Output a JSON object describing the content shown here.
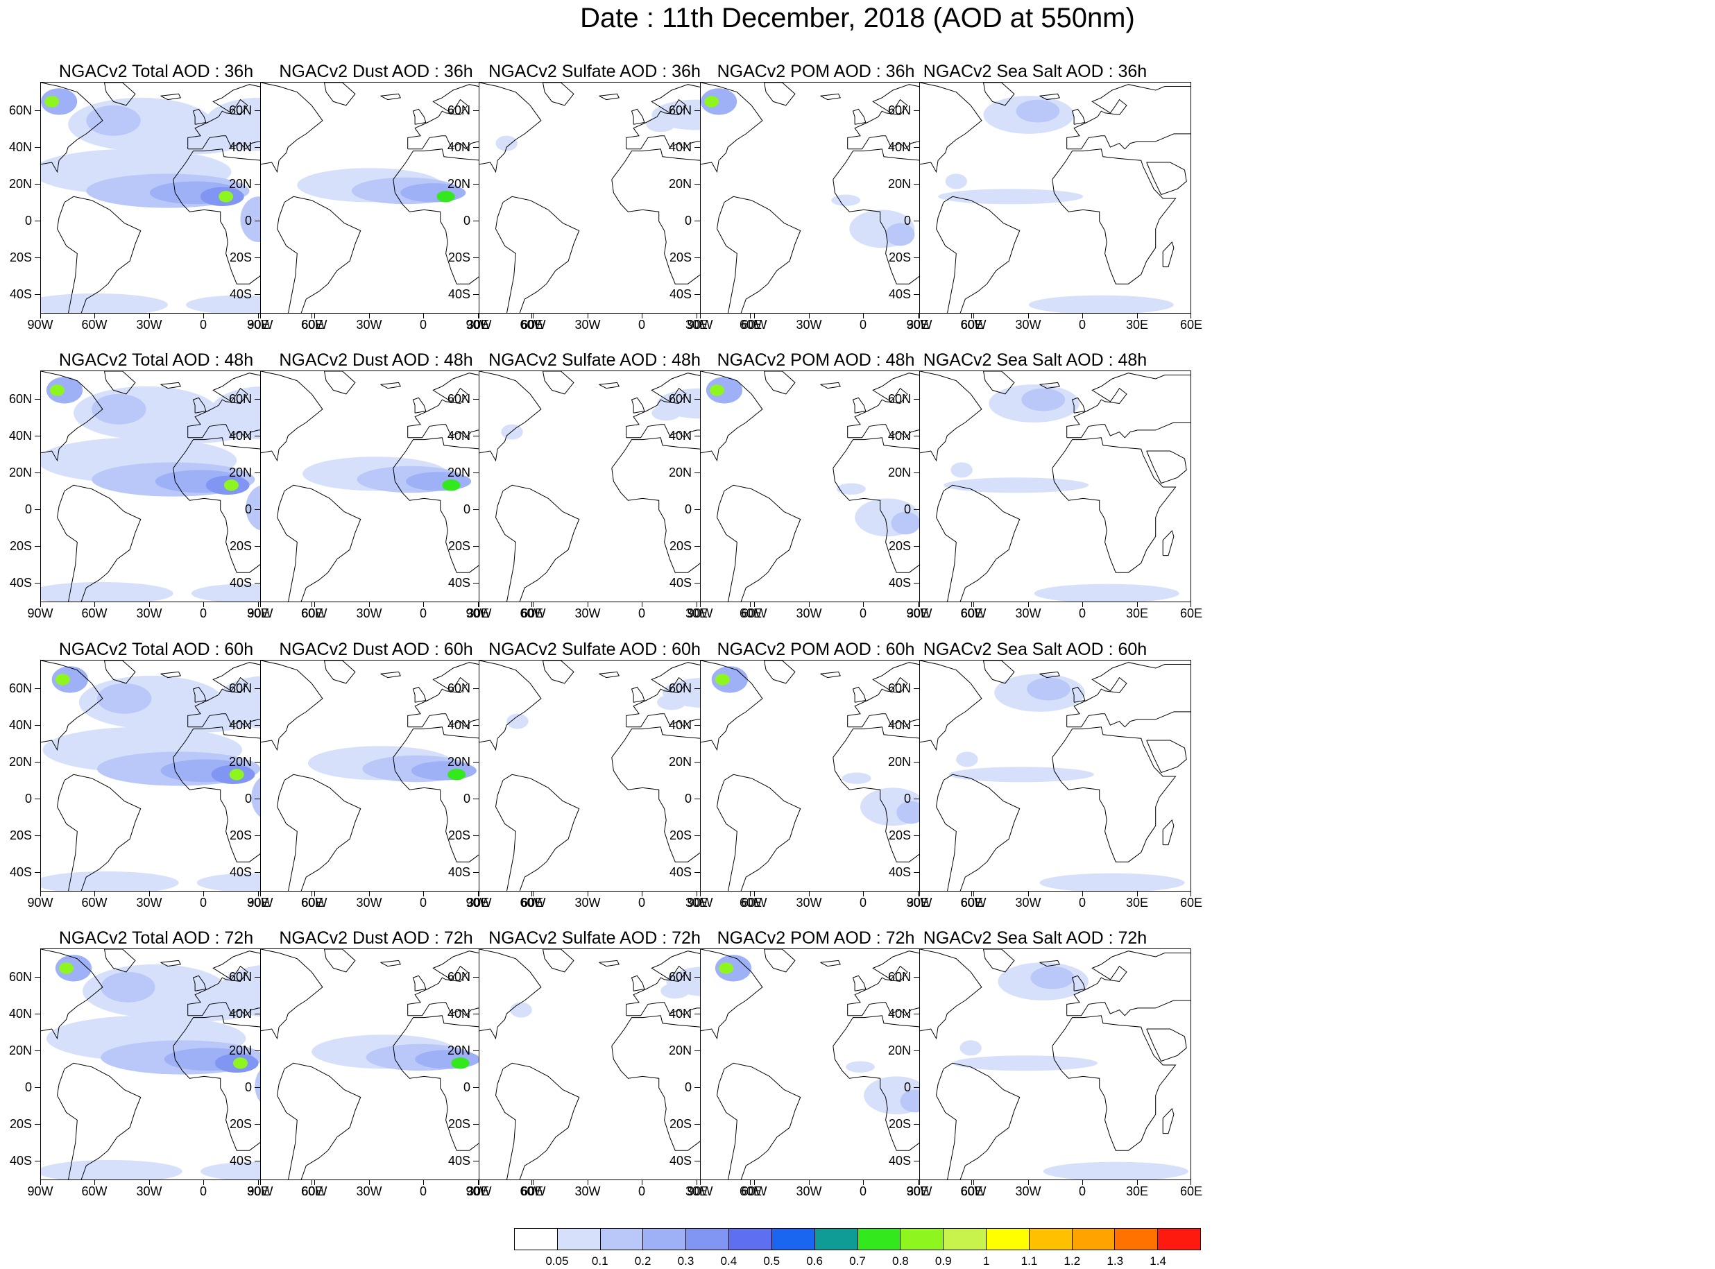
{
  "title": "Date : 11th December, 2018 (AOD at 550nm)",
  "latitude_ticks": [
    "60N",
    "40N",
    "20N",
    "0",
    "20S",
    "40S"
  ],
  "longitude_ticks": [
    "90W",
    "60W",
    "30W",
    "0",
    "30E",
    "60E"
  ],
  "panels": [
    [
      "NGACv2 Total AOD : 36h",
      "NGACv2 Dust AOD : 36h",
      "NGACv2 Sulfate AOD : 36h",
      "NGACv2 POM AOD : 36h",
      "NGACv2 Sea Salt AOD : 36h"
    ],
    [
      "NGACv2 Total AOD : 48h",
      "NGACv2 Dust AOD : 48h",
      "NGACv2 Sulfate AOD : 48h",
      "NGACv2 POM AOD : 48h",
      "NGACv2 Sea Salt AOD : 48h"
    ],
    [
      "NGACv2 Total AOD : 60h",
      "NGACv2 Dust AOD : 60h",
      "NGACv2 Sulfate AOD : 60h",
      "NGACv2 POM AOD : 60h",
      "NGACv2 Sea Salt AOD : 60h"
    ],
    [
      "NGACv2 Total AOD : 72h",
      "NGACv2 Dust AOD : 72h",
      "NGACv2 Sulfate AOD : 72h",
      "NGACv2 POM AOD : 72h",
      "NGACv2 Sea Salt  AOD : 72h"
    ]
  ],
  "colorbar": {
    "labels": [
      "0.05",
      "0.1",
      "0.2",
      "0.3",
      "0.4",
      "0.5",
      "0.6",
      "0.7",
      "0.8",
      "0.9",
      "1",
      "1.1",
      "1.2",
      "1.3",
      "1.4"
    ],
    "colors": [
      "#ffffff",
      "#d6e0fb",
      "#b9c8f8",
      "#9eb1f6",
      "#8195f3",
      "#5e70ef",
      "#1a66f0",
      "#0f9b96",
      "#33e81c",
      "#8ef51f",
      "#c8f34b",
      "#ffff00",
      "#ffc000",
      "#ffa300",
      "#ff7200",
      "#ff1a10"
    ]
  }
}
